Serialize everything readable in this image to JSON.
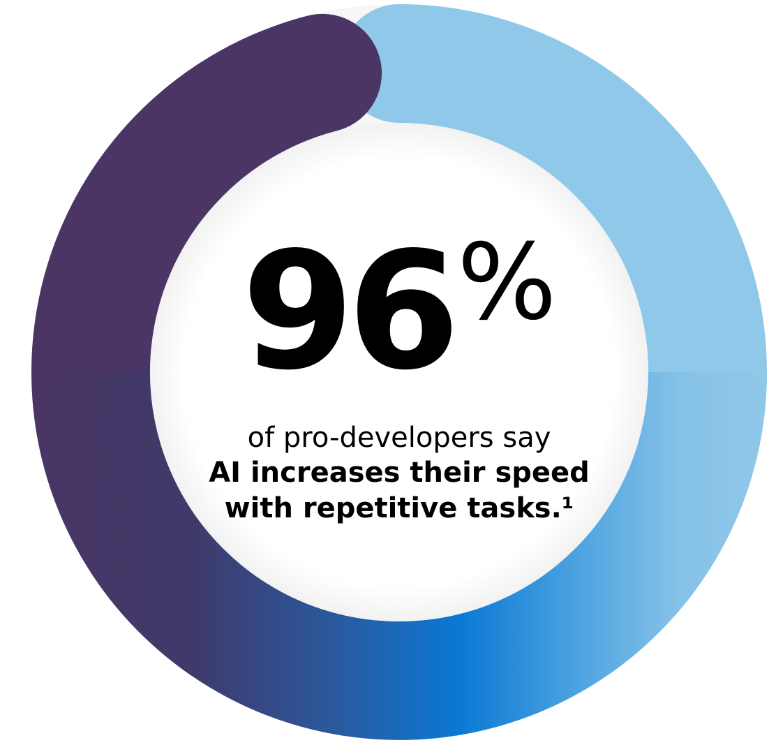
{
  "chart_data": {
    "type": "pie",
    "variant": "donut",
    "title": "",
    "slices": [
      {
        "label": "",
        "value": 96,
        "color_start": "#8fc8e8",
        "color_end": "#0078d4"
      },
      {
        "label": "",
        "value": 4,
        "color": "#f6f6f6"
      }
    ],
    "series_colors": [
      "#8fc8e8",
      "#0078d4",
      "#4a3564"
    ],
    "center_value": "96",
    "center_unit": "%",
    "caption": {
      "line1": "of pro-developers say",
      "line2": "AI increases their speed",
      "line3": "with repetitive tasks.¹"
    }
  }
}
